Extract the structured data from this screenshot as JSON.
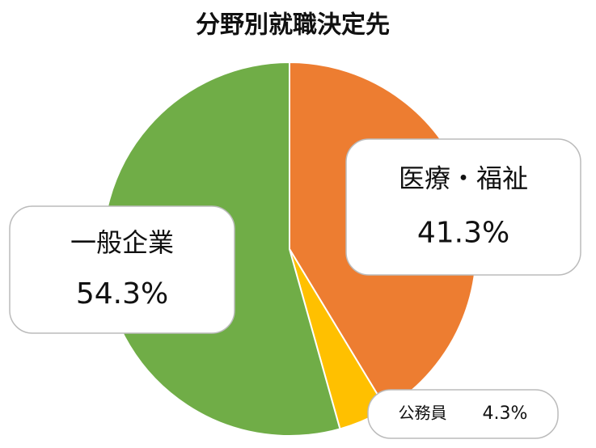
{
  "chart_data": {
    "type": "pie",
    "title": "分野別就職決定先",
    "categories": [
      "医療・福祉",
      "公務員",
      "一般企業"
    ],
    "values": [
      41.3,
      4.3,
      54.3
    ],
    "value_labels": [
      "41.3%",
      "4.3%",
      "54.3%"
    ],
    "colors": [
      "#ed7d31",
      "#ffc000",
      "#70ad47"
    ]
  }
}
